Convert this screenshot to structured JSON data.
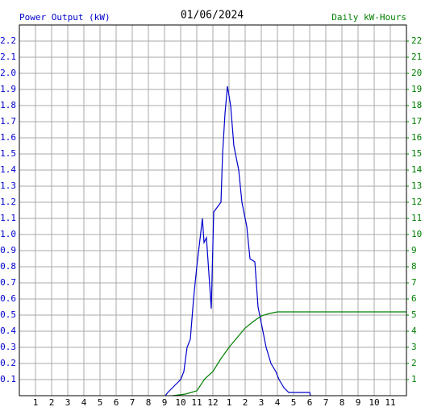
{
  "chart_data": {
    "type": "line",
    "title": "01/06/2024",
    "y_label": "Power Output (kW)",
    "y2_label": "Daily kW-Hours",
    "xlim": [
      0,
      24
    ],
    "xticks": [
      1,
      2,
      3,
      4,
      5,
      6,
      7,
      8,
      9,
      10,
      11,
      12,
      {
        "value": 13,
        "label": "1"
      },
      {
        "value": 14,
        "label": "2"
      },
      {
        "value": 15,
        "label": "3"
      },
      {
        "value": 16,
        "label": "4"
      },
      {
        "value": 17,
        "label": "5"
      },
      {
        "value": 18,
        "label": "6"
      },
      {
        "value": 19,
        "label": "7"
      },
      {
        "value": 20,
        "label": "8"
      },
      {
        "value": 21,
        "label": "9"
      },
      {
        "value": 22,
        "label": "10"
      },
      {
        "value": 23,
        "label": "11"
      }
    ],
    "ylim": [
      0,
      2.3
    ],
    "yticks": [
      0.1,
      0.2,
      0.3,
      0.4,
      0.5,
      0.6,
      0.7,
      0.8,
      0.9,
      {
        "value": 1,
        "label": "1.0"
      },
      1.1,
      1.2,
      1.3,
      1.4,
      1.5,
      1.6,
      1.7,
      1.8,
      1.9,
      {
        "value": 2,
        "label": "2.0"
      },
      2.1,
      2.2
    ],
    "y2lim": [
      0,
      23
    ],
    "y2ticks": [
      1,
      2,
      3,
      4,
      5,
      6,
      7,
      8,
      9,
      10,
      11,
      12,
      13,
      14,
      15,
      16,
      17,
      18,
      19,
      20,
      21,
      22
    ],
    "grid": true,
    "series": [
      {
        "name": "Power Output",
        "color": "#0000cc",
        "axis": "y",
        "x": [
          9.05,
          9.2,
          9.5,
          9.8,
          10.0,
          10.2,
          10.4,
          10.6,
          10.8,
          11.0,
          11.35,
          11.45,
          11.6,
          11.9,
          12.05,
          12.5,
          12.6,
          12.75,
          12.9,
          13.1,
          13.3,
          13.6,
          13.8,
          14.1,
          14.3,
          14.6,
          14.8,
          15.0,
          15.3,
          15.6,
          15.9,
          16.1,
          16.4,
          16.7,
          18.0,
          18.05
        ],
        "values": [
          0,
          0.02,
          0.05,
          0.08,
          0.1,
          0.15,
          0.3,
          0.35,
          0.6,
          0.8,
          1.1,
          0.95,
          0.98,
          0.54,
          1.14,
          1.2,
          1.5,
          1.75,
          1.92,
          1.8,
          1.55,
          1.4,
          1.2,
          1.05,
          0.85,
          0.83,
          0.55,
          0.45,
          0.3,
          0.2,
          0.15,
          0.1,
          0.05,
          0.02,
          0.02,
          0
        ]
      },
      {
        "name": "Daily kW-Hours",
        "color": "#008000",
        "axis": "y2",
        "x": [
          9.5,
          10.3,
          11.0,
          11.5,
          12.0,
          12.5,
          13.0,
          13.5,
          14.0,
          14.5,
          15.0,
          15.5,
          16.0,
          24.0
        ],
        "values": [
          0,
          0.1,
          0.3,
          1.05,
          1.5,
          2.3,
          3.0,
          3.6,
          4.2,
          4.6,
          4.95,
          5.1,
          5.2,
          5.2
        ]
      }
    ]
  }
}
